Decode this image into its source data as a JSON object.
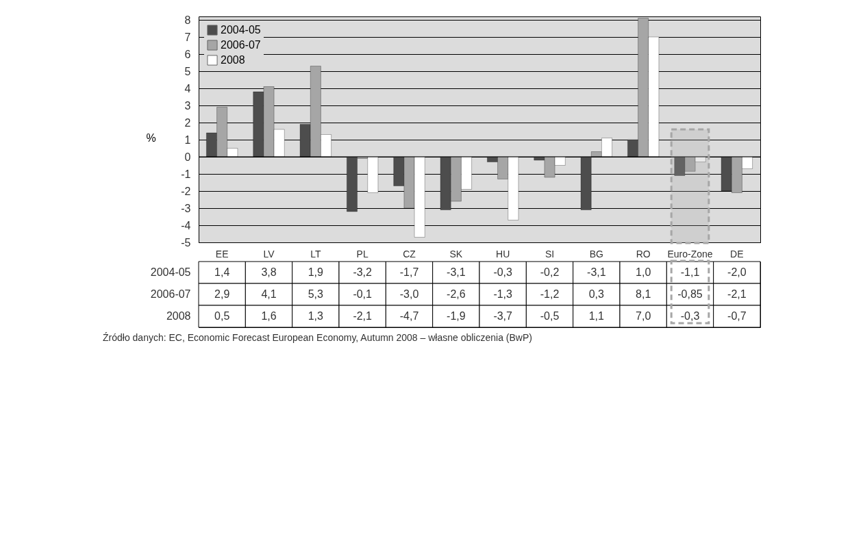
{
  "chart_data": {
    "type": "bar",
    "ylabel": "%",
    "categories": [
      "EE",
      "LV",
      "LT",
      "PL",
      "CZ",
      "SK",
      "HU",
      "SI",
      "BG",
      "RO",
      "Euro-Zone",
      "DE"
    ],
    "series": [
      {
        "name": "2004-05",
        "color": "#4d4d4d",
        "values": [
          1.4,
          3.8,
          1.9,
          -3.2,
          -1.7,
          -3.1,
          -0.3,
          -0.2,
          -3.1,
          1.0,
          -1.1,
          -2.0
        ],
        "value_labels": [
          "1,4",
          "3,8",
          "1,9",
          "-3,2",
          "-1,7",
          "-3,1",
          "-0,3",
          "-0,2",
          "-3,1",
          "1,0",
          "-1,1",
          "-2,0"
        ]
      },
      {
        "name": "2006-07",
        "color": "#a6a6a6",
        "values": [
          2.9,
          4.1,
          5.3,
          -0.1,
          -3.0,
          -2.6,
          -1.3,
          -1.2,
          0.3,
          8.1,
          -0.85,
          -2.1
        ],
        "value_labels": [
          "2,9",
          "4,1",
          "5,3",
          "-0,1",
          "-3,0",
          "-2,6",
          "-1,3",
          "-1,2",
          "0,3",
          "8,1",
          "-0,85",
          "-2,1"
        ]
      },
      {
        "name": "2008",
        "color": "#ffffff",
        "values": [
          0.5,
          1.6,
          1.3,
          -2.1,
          -4.7,
          -1.9,
          -3.7,
          -0.5,
          1.1,
          7.0,
          -0.3,
          -0.7
        ],
        "value_labels": [
          "0,5",
          "1,6",
          "1,3",
          "-2,1",
          "-4,7",
          "-1,9",
          "-3,7",
          "-0,5",
          "1,1",
          "7,0",
          "-0,3",
          "-0,7"
        ]
      }
    ],
    "ylim": [
      -5,
      8.2
    ],
    "yticks": [
      -5,
      -4,
      -3,
      -2,
      -1,
      0,
      1,
      2,
      3,
      4,
      5,
      6,
      7,
      8
    ],
    "grid": "y",
    "legend": "top left",
    "bands": [
      {
        "axis": "x",
        "from": "Euro-Zone",
        "to": "Euro-Zone",
        "color": "#a6a6a6"
      }
    ],
    "annotations": [
      "Źródło danych: EC, Economic Forecast European Economy, Autumn 2008 – własne obliczenia (BwP)"
    ]
  }
}
